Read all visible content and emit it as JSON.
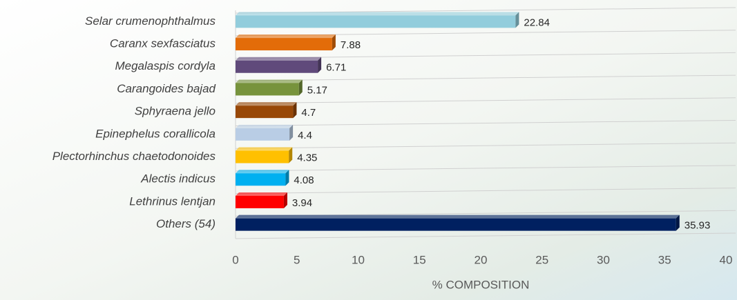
{
  "chart_data": {
    "type": "bar",
    "orientation": "horizontal",
    "x_label": "% COMPOSITION",
    "categories": [
      "Selar crumenophthalmus",
      "Caranx sexfasciatus",
      "Megalaspis cordyla",
      "Carangoides bajad",
      "Sphyraena jello",
      "Epinephelus corallicola",
      "Plectorhinchus chaetodonoides",
      "Alectis indicus",
      "Lethrinus lentjan",
      "Others (54)"
    ],
    "values": [
      22.84,
      7.88,
      6.71,
      5.17,
      4.7,
      4.4,
      4.35,
      4.08,
      3.94,
      35.93
    ],
    "colors": [
      "#92cddc",
      "#e36c09",
      "#604a7b",
      "#77933c",
      "#984807",
      "#b9cde5",
      "#ffc000",
      "#00b0f0",
      "#ff0000",
      "#002060"
    ],
    "xlim": [
      0,
      40
    ],
    "xticks": [
      0,
      5,
      10,
      15,
      20,
      25,
      30,
      35,
      40
    ]
  }
}
